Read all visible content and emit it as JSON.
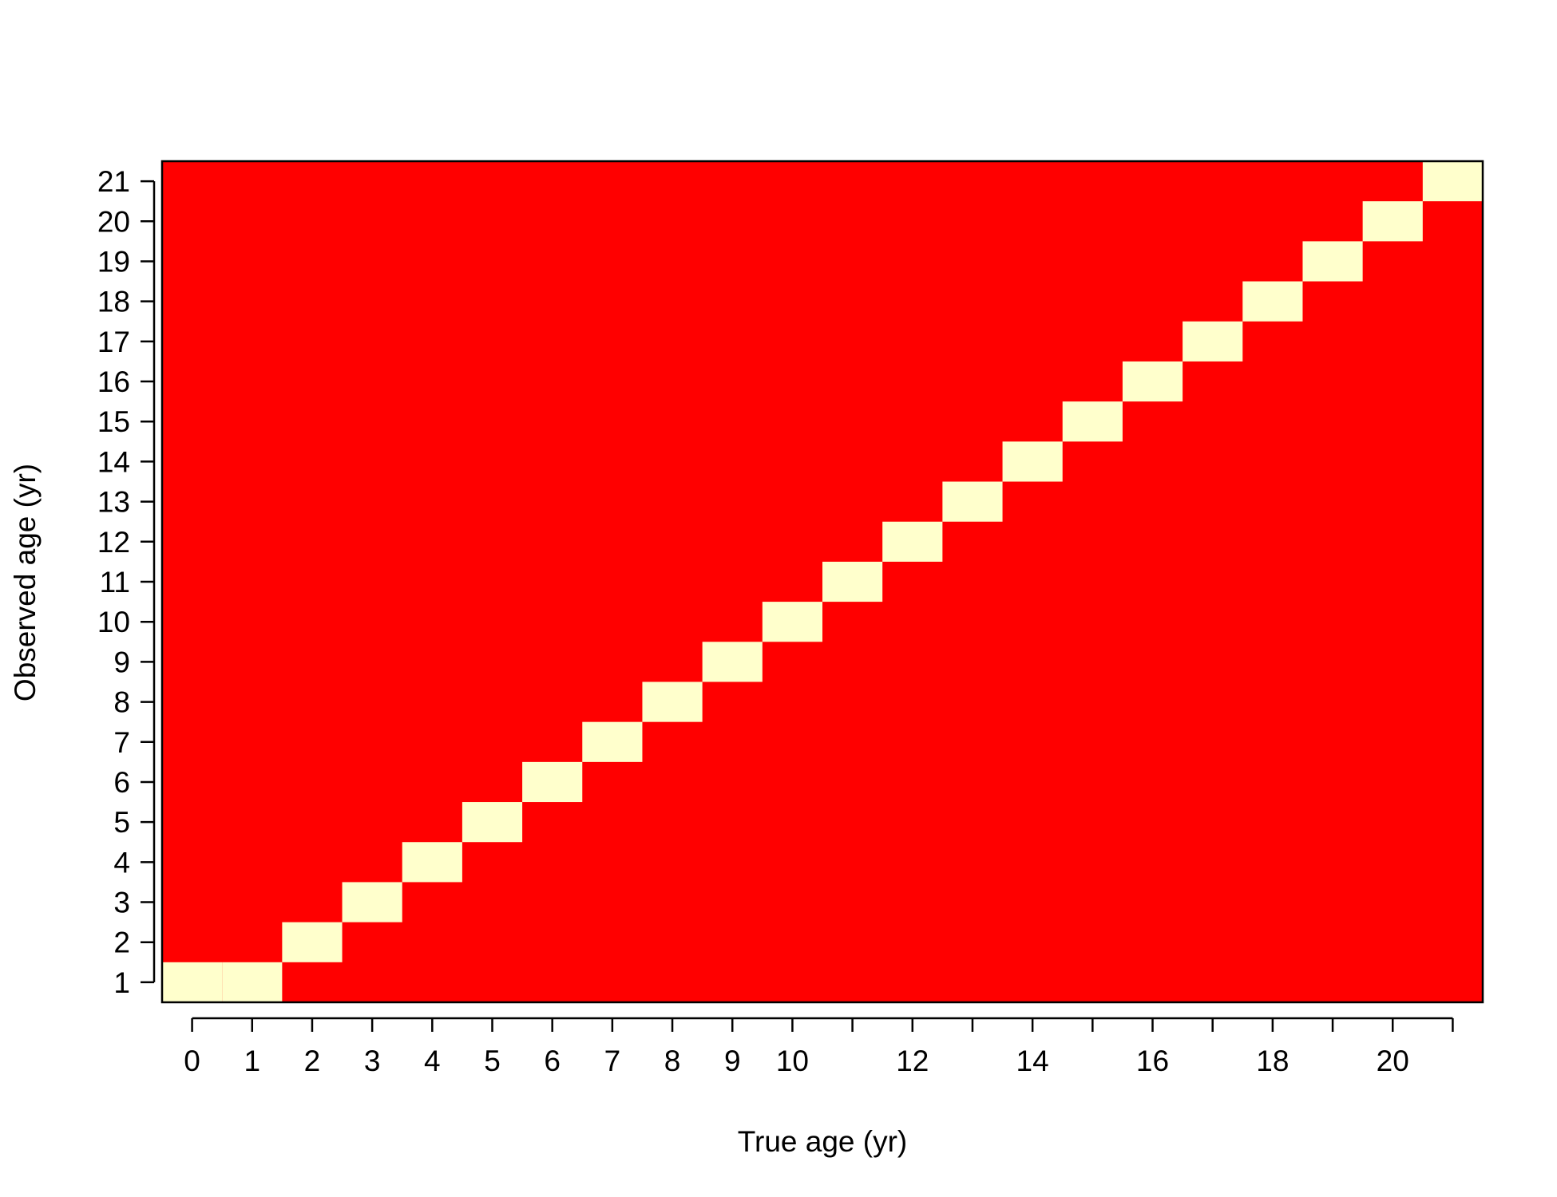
{
  "chart_data": {
    "type": "heatmap",
    "title": "",
    "xlabel": "True age (yr)",
    "ylabel": "Observed age (yr)",
    "x": [
      0,
      1,
      2,
      3,
      4,
      5,
      6,
      7,
      8,
      9,
      10,
      11,
      12,
      13,
      14,
      15,
      16,
      17,
      18,
      19,
      20,
      21
    ],
    "y": [
      1,
      2,
      3,
      4,
      5,
      6,
      7,
      8,
      9,
      10,
      11,
      12,
      13,
      14,
      15,
      16,
      17,
      18,
      19,
      20,
      21
    ],
    "x_tick_labels": [
      "0",
      "1",
      "2",
      "3",
      "4",
      "5",
      "6",
      "7",
      "8",
      "9",
      "10",
      "12",
      "14",
      "16",
      "18",
      "20"
    ],
    "y_tick_labels": [
      "1",
      "2",
      "3",
      "4",
      "5",
      "6",
      "7",
      "8",
      "9",
      "10",
      "11",
      "12",
      "13",
      "14",
      "15",
      "16",
      "17",
      "18",
      "19",
      "20",
      "21"
    ],
    "xlim": [
      -0.5,
      21.5
    ],
    "ylim": [
      0.5,
      21.5
    ],
    "high_cells": [
      [
        0,
        1
      ],
      [
        1,
        1
      ],
      [
        2,
        2
      ],
      [
        3,
        3
      ],
      [
        4,
        4
      ],
      [
        5,
        5
      ],
      [
        6,
        6
      ],
      [
        7,
        7
      ],
      [
        8,
        8
      ],
      [
        9,
        9
      ],
      [
        10,
        10
      ],
      [
        11,
        11
      ],
      [
        12,
        12
      ],
      [
        13,
        13
      ],
      [
        14,
        14
      ],
      [
        15,
        15
      ],
      [
        16,
        16
      ],
      [
        17,
        17
      ],
      [
        18,
        18
      ],
      [
        19,
        19
      ],
      [
        20,
        20
      ],
      [
        21,
        21
      ]
    ],
    "colors": {
      "background": "#ff0000",
      "high": "#ffffcc",
      "frame": "#000000"
    },
    "grid": false,
    "legend": "none"
  }
}
